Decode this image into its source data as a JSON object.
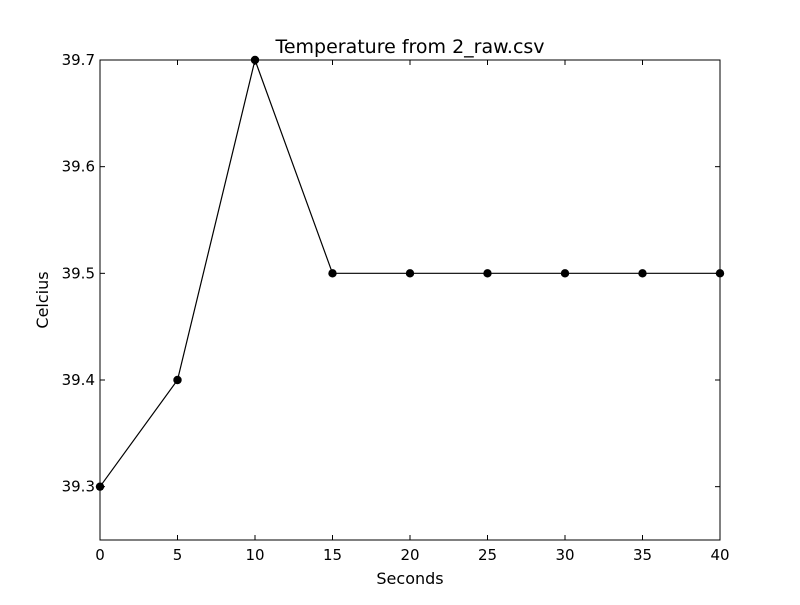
{
  "chart_data": {
    "type": "line",
    "title": "Temperature from 2_raw.csv",
    "xlabel": "Seconds",
    "ylabel": "Celcius",
    "xlim": [
      0,
      40
    ],
    "ylim": [
      39.25,
      39.7
    ],
    "xticks": [
      "0",
      "5",
      "10",
      "15",
      "20",
      "25",
      "30",
      "35",
      "40"
    ],
    "yticks": [
      "39.3",
      "39.4",
      "39.5",
      "39.6",
      "39.7"
    ],
    "grid": false,
    "series": [
      {
        "color": "#000000",
        "marker": "circle",
        "x": [
          0,
          5,
          10,
          15,
          20,
          25,
          30,
          35,
          40
        ],
        "y": [
          39.3,
          39.4,
          39.7,
          39.5,
          39.5,
          39.5,
          39.5,
          39.5,
          39.5
        ]
      }
    ]
  }
}
